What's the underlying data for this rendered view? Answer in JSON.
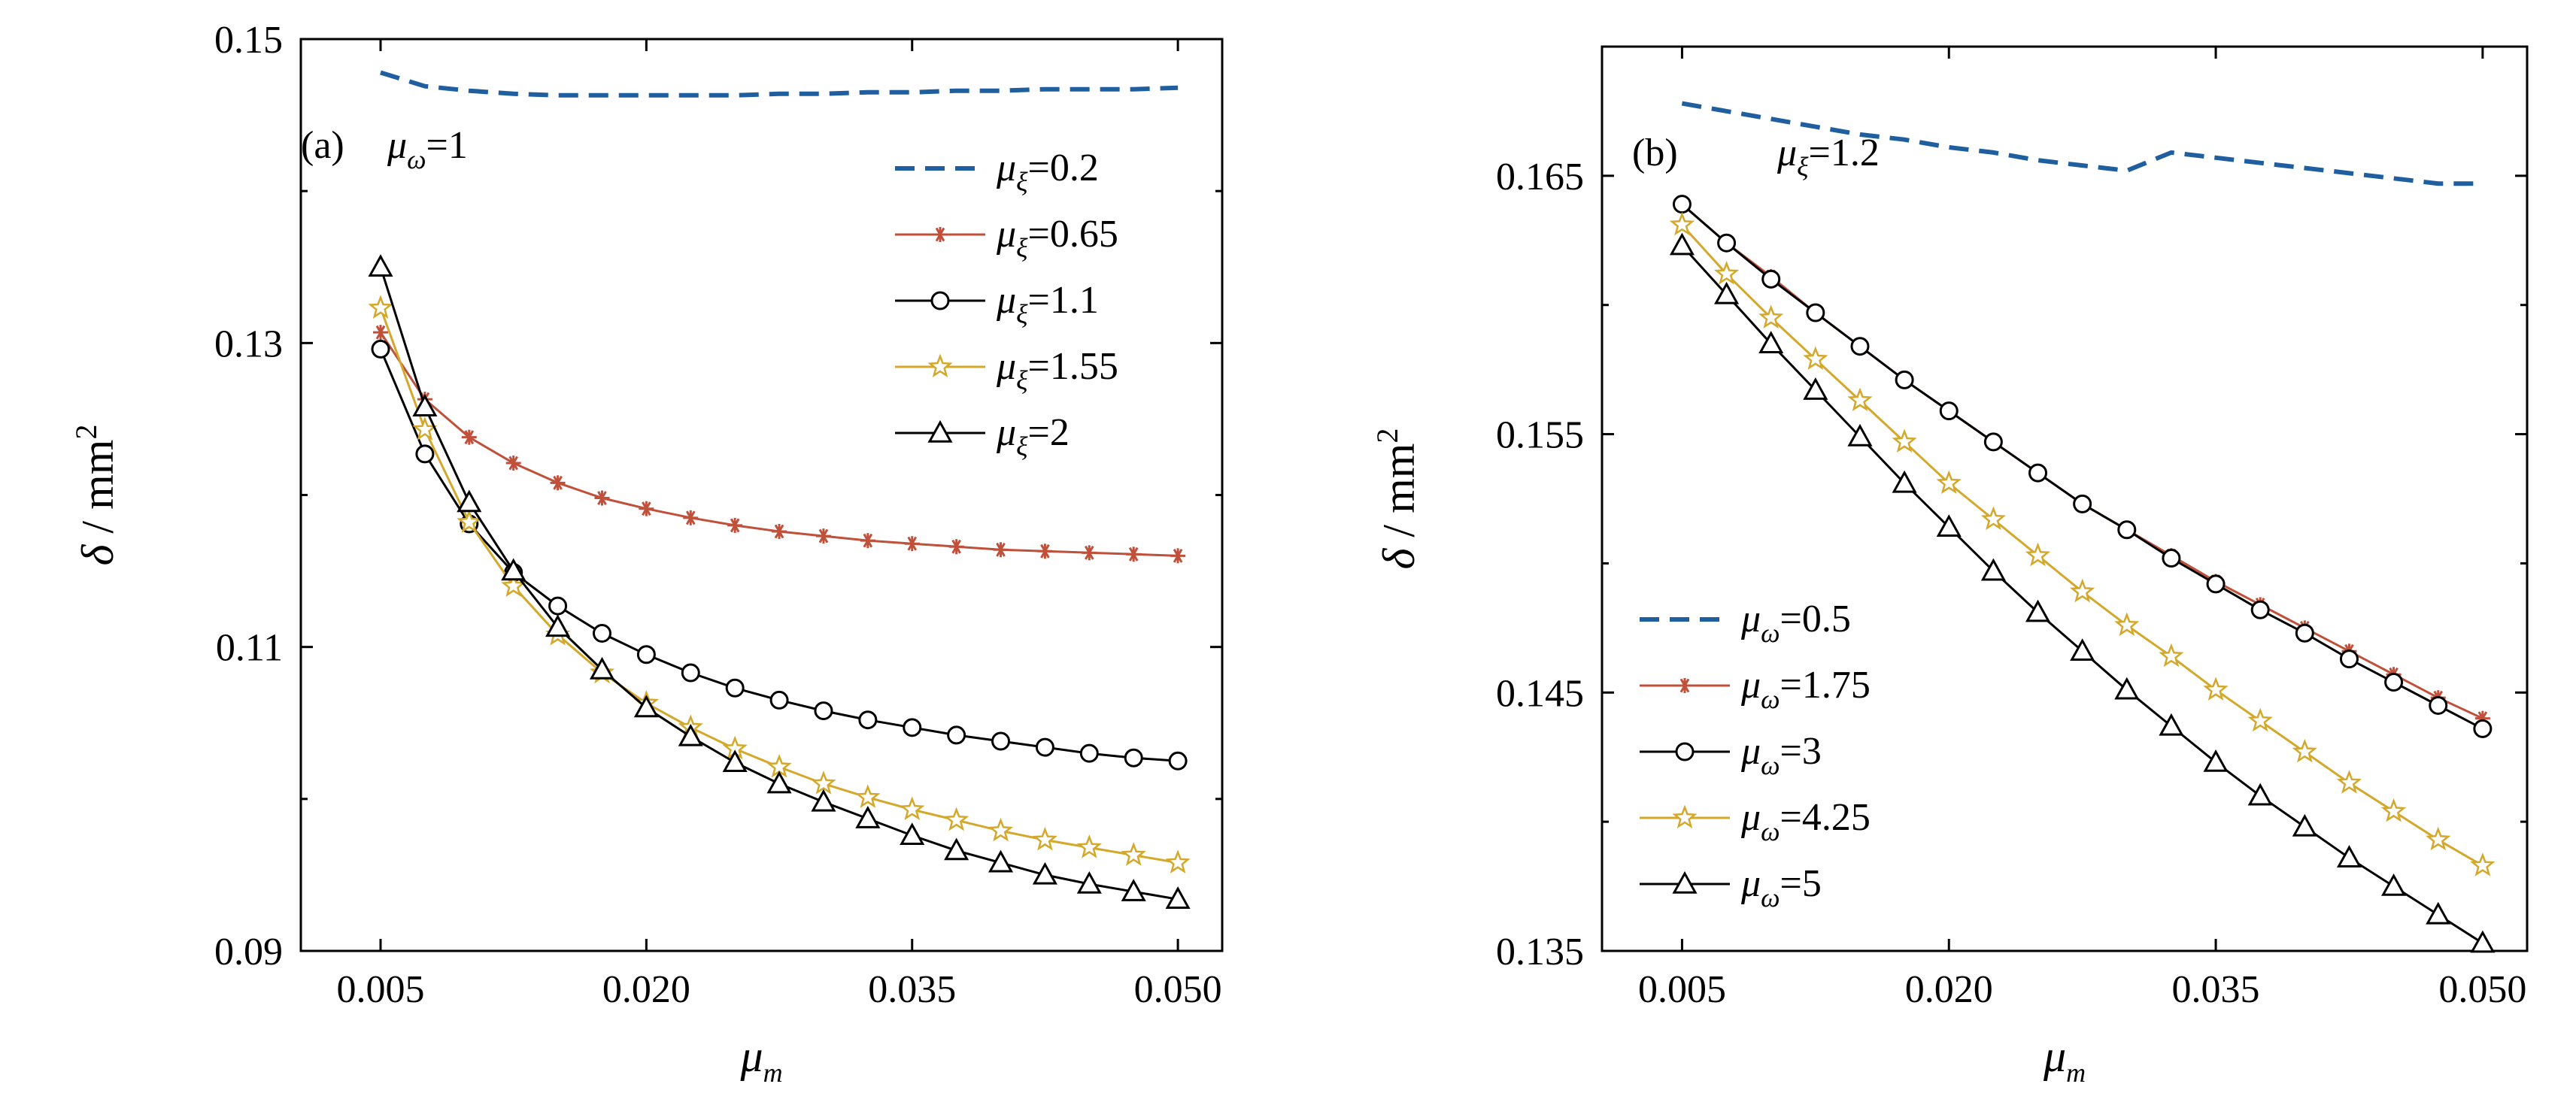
{
  "chart_data": [
    {
      "type": "line",
      "panel_label": "(a)",
      "annotation": {
        "symbol": "μ",
        "subscript": "ω",
        "value": "=1"
      },
      "xlabel": {
        "symbol": "μ",
        "subscript": "m"
      },
      "ylabel": {
        "symbol": "δ",
        "unit": " / mm",
        "exponent": "2"
      },
      "xlim": [
        0.0005,
        0.0525
      ],
      "ylim": [
        0.09,
        0.15
      ],
      "xticks": [
        0.005,
        0.02,
        0.035,
        0.05
      ],
      "xtick_labels": [
        "0.005",
        "0.020",
        "0.035",
        "0.050"
      ],
      "yticks": [
        0.09,
        0.11,
        0.13,
        0.15
      ],
      "ytick_labels": [
        "0.09",
        "0.11",
        "0.13",
        "0.15"
      ],
      "grid": false,
      "legend_position": "upper-right",
      "x": [
        0.005,
        0.0075,
        0.01,
        0.0125,
        0.015,
        0.0175,
        0.02,
        0.0225,
        0.025,
        0.0275,
        0.03,
        0.0325,
        0.035,
        0.0375,
        0.04,
        0.0425,
        0.045,
        0.0475,
        0.05
      ],
      "series": [
        {
          "legend": {
            "symbol": "μ",
            "subscript": "ξ",
            "value": "=0.2"
          },
          "color": "#1f5fa0",
          "marker": "none",
          "dashed": true,
          "values": [
            0.1478,
            0.1469,
            0.1466,
            0.1464,
            0.1463,
            0.1463,
            0.1463,
            0.1463,
            0.1463,
            0.1464,
            0.1464,
            0.1465,
            0.1465,
            0.1466,
            0.1466,
            0.1467,
            0.1467,
            0.1467,
            0.1468
          ]
        },
        {
          "legend": {
            "symbol": "μ",
            "subscript": "ξ",
            "value": "=0.65"
          },
          "color": "#c0503a",
          "marker": "asterisk",
          "dashed": false,
          "values": [
            0.1307,
            0.1263,
            0.1238,
            0.1221,
            0.1208,
            0.1198,
            0.1191,
            0.1185,
            0.118,
            0.1176,
            0.1173,
            0.117,
            0.1168,
            0.1166,
            0.1164,
            0.1163,
            0.1162,
            0.1161,
            0.116
          ]
        },
        {
          "legend": {
            "symbol": "μ",
            "subscript": "ξ",
            "value": "=1.1"
          },
          "color": "#000000",
          "marker": "circle",
          "dashed": false,
          "values": [
            0.1296,
            0.1227,
            0.1181,
            0.1149,
            0.1127,
            0.1109,
            0.1095,
            0.1083,
            0.1073,
            0.1065,
            0.1058,
            0.1052,
            0.1047,
            0.1042,
            0.1038,
            0.1034,
            0.103,
            0.1027,
            0.1025
          ]
        },
        {
          "legend": {
            "symbol": "μ",
            "subscript": "ξ",
            "value": "=1.55"
          },
          "color": "#d4a82a",
          "marker": "star",
          "dashed": false,
          "values": [
            0.1323,
            0.1243,
            0.1182,
            0.114,
            0.1108,
            0.1083,
            0.1063,
            0.1047,
            0.1033,
            0.1021,
            0.101,
            0.1001,
            0.0993,
            0.0986,
            0.0979,
            0.0973,
            0.0968,
            0.0963,
            0.0958
          ]
        },
        {
          "legend": {
            "symbol": "μ",
            "subscript": "ξ",
            "value": "=2"
          },
          "color": "#000000",
          "marker": "triangle",
          "dashed": false,
          "values": [
            0.135,
            0.1258,
            0.1195,
            0.115,
            0.1113,
            0.1085,
            0.106,
            0.1041,
            0.1024,
            0.101,
            0.0998,
            0.0987,
            0.0976,
            0.0966,
            0.0958,
            0.095,
            0.0944,
            0.0939,
            0.0934
          ]
        }
      ]
    },
    {
      "type": "line",
      "panel_label": "(b)",
      "annotation": {
        "symbol": "μ",
        "subscript": "ξ",
        "value": "=1.2"
      },
      "xlabel": {
        "symbol": "μ",
        "subscript": "m"
      },
      "ylabel": {
        "symbol": "δ",
        "unit": " / mm",
        "exponent": "2"
      },
      "xlim": [
        0.0005,
        0.0525
      ],
      "ylim": [
        0.135,
        0.17
      ],
      "xticks": [
        0.005,
        0.02,
        0.035,
        0.05
      ],
      "xtick_labels": [
        "0.005",
        "0.020",
        "0.035",
        "0.050"
      ],
      "yticks": [
        0.135,
        0.145,
        0.155,
        0.165
      ],
      "ytick_labels": [
        "0.135",
        "0.145",
        "0.155",
        "0.165"
      ],
      "grid": false,
      "legend_position": "lower-left",
      "x": [
        0.005,
        0.0075,
        0.01,
        0.0125,
        0.015,
        0.0175,
        0.02,
        0.0225,
        0.025,
        0.0275,
        0.03,
        0.0325,
        0.035,
        0.0375,
        0.04,
        0.0425,
        0.045,
        0.0475,
        0.05
      ],
      "series": [
        {
          "legend": {
            "symbol": "μ",
            "subscript": "ω",
            "value": "=0.5"
          },
          "color": "#1f5fa0",
          "marker": "none",
          "dashed": true,
          "values": [
            0.1678,
            0.1675,
            0.1672,
            0.1669,
            0.1666,
            0.1664,
            0.1661,
            0.1659,
            0.1656,
            0.1654,
            0.1652,
            0.1659,
            0.1657,
            0.1655,
            0.1653,
            0.1651,
            0.1649,
            0.1647,
            0.1647
          ]
        },
        {
          "legend": {
            "symbol": "μ",
            "subscript": "ω",
            "value": "=1.75"
          },
          "color": "#c0503a",
          "marker": "asterisk",
          "dashed": false,
          "values": [
            0.1639,
            0.1624,
            0.1611,
            0.1597,
            0.1584,
            0.1571,
            0.1559,
            0.1547,
            0.1535,
            0.1523,
            0.1513,
            0.1503,
            0.1493,
            0.1484,
            0.1475,
            0.1466,
            0.1457,
            0.1448,
            0.144
          ]
        },
        {
          "legend": {
            "symbol": "μ",
            "subscript": "ω",
            "value": "=3"
          },
          "color": "#000000",
          "marker": "circle",
          "dashed": false,
          "values": [
            0.1639,
            0.1624,
            0.161,
            0.1597,
            0.1584,
            0.1571,
            0.1559,
            0.1547,
            0.1535,
            0.1523,
            0.1513,
            0.1502,
            0.1492,
            0.1482,
            0.1473,
            0.1463,
            0.1454,
            0.1445,
            0.1436
          ]
        },
        {
          "legend": {
            "symbol": "μ",
            "subscript": "ω",
            "value": "=4.25"
          },
          "color": "#d4a82a",
          "marker": "star",
          "dashed": false,
          "values": [
            0.1631,
            0.1612,
            0.1595,
            0.1579,
            0.1563,
            0.1547,
            0.1531,
            0.1517,
            0.1503,
            0.1489,
            0.1476,
            0.1464,
            0.1451,
            0.1439,
            0.1427,
            0.1415,
            0.1404,
            0.1393,
            0.1383
          ]
        },
        {
          "legend": {
            "symbol": "μ",
            "subscript": "ω",
            "value": "=5"
          },
          "color": "#000000",
          "marker": "triangle",
          "dashed": false,
          "values": [
            0.1623,
            0.1604,
            0.1585,
            0.1567,
            0.1549,
            0.1531,
            0.1514,
            0.1497,
            0.1481,
            0.1466,
            0.1451,
            0.1437,
            0.1423,
            0.141,
            0.1398,
            0.1386,
            0.1375,
            0.1364,
            0.1353
          ]
        }
      ]
    }
  ]
}
